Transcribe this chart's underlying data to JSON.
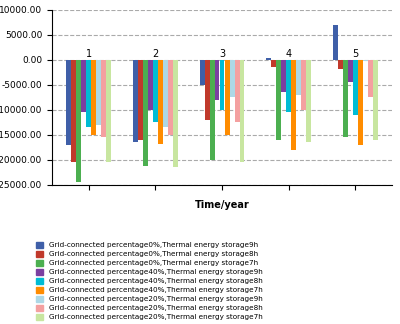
{
  "years": [
    1,
    2,
    3,
    4,
    5
  ],
  "series": [
    {
      "label": "Grid-connected percentage0%,Thermal energy storage9h",
      "color": "#3f5fa8",
      "values": [
        -17000,
        -16500,
        -5000,
        300,
        7000
      ]
    },
    {
      "label": "Grid-connected percentage0%,Thermal energy storage8h",
      "color": "#c0392b",
      "values": [
        -20500,
        -16000,
        -12000,
        -1500,
        -1800
      ]
    },
    {
      "label": "Grid-connected percentage0%,Thermal energy storage7h",
      "color": "#4caf50",
      "values": [
        -24500,
        -21200,
        -20000,
        -16000,
        -15500
      ]
    },
    {
      "label": "Grid-connected percentage40%,Thermal energy storage9h",
      "color": "#7b3fa0",
      "values": [
        -10500,
        -10000,
        -8000,
        -6500,
        -4500
      ]
    },
    {
      "label": "Grid-connected percentage40%,Thermal energy storage8h",
      "color": "#00bcd4",
      "values": [
        -13500,
        -12500,
        -10000,
        -10500,
        -11000
      ]
    },
    {
      "label": "Grid-connected percentage40%,Thermal energy storage7h",
      "color": "#ff8c00",
      "values": [
        -15000,
        -16800,
        -15000,
        -18000,
        -17000
      ]
    },
    {
      "label": "Grid-connected percentage20%,Thermal energy storage9h",
      "color": "#add8e6",
      "values": [
        -13000,
        -13500,
        -7500,
        -7000,
        -200
      ]
    },
    {
      "label": "Grid-connected percentage20%,Thermal energy storage8h",
      "color": "#f4a0a0",
      "values": [
        -15500,
        -15000,
        -12500,
        -10000,
        -7500
      ]
    },
    {
      "label": "Grid-connected percentage20%,Thermal energy storage7h",
      "color": "#c8e6a0",
      "values": [
        -20500,
        -21500,
        -20500,
        -16500,
        -16000
      ]
    }
  ],
  "ylim": [
    -25000,
    10000
  ],
  "yticks": [
    -25000,
    -20000,
    -15000,
    -10000,
    -5000,
    0,
    5000,
    10000
  ],
  "xlabel": "Time/year",
  "bar_width": 0.075,
  "background_color": "#ffffff",
  "grid_color": "#aaaaaa",
  "grid_style": "--",
  "legend_fontsize": 5.2,
  "axis_fontsize": 7,
  "tick_fontsize": 6.5
}
